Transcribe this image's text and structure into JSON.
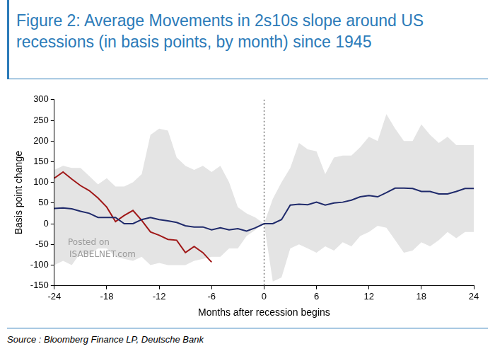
{
  "chart_data": {
    "type": "line",
    "title": [
      "Figure 2: Average Movements in 2s10s slope around US",
      "recessions (in basis points, by month) since 1945"
    ],
    "x_label": "Months after recession begins",
    "y_label": "Basis point change",
    "source": "Source : Bloomberg Finance LP, Deutsche Bank",
    "x": [
      -24,
      -23,
      -22,
      -21,
      -20,
      -19,
      -18,
      -17,
      -16,
      -15,
      -14,
      -13,
      -12,
      -11,
      -10,
      -9,
      -8,
      -7,
      -6,
      -5,
      -4,
      -3,
      -2,
      -1,
      0,
      1,
      2,
      3,
      4,
      5,
      6,
      7,
      8,
      9,
      10,
      11,
      12,
      13,
      14,
      15,
      16,
      17,
      18,
      19,
      20,
      21,
      22,
      23,
      24
    ],
    "series": [
      {
        "color": "#1f2a6b",
        "line_style": "solid",
        "values": [
          37,
          38,
          36,
          30,
          25,
          15,
          15,
          15,
          0,
          0,
          10,
          15,
          10,
          7,
          3,
          -5,
          -8,
          -8,
          -15,
          -10,
          -15,
          -12,
          -18,
          -10,
          0,
          0,
          10,
          45,
          47,
          46,
          52,
          45,
          50,
          52,
          57,
          65,
          68,
          65,
          75,
          86,
          86,
          85,
          78,
          78,
          72,
          72,
          78,
          85,
          85
        ],
        "upper": [
          130,
          140,
          135,
          135,
          115,
          95,
          110,
          90,
          90,
          100,
          120,
          215,
          230,
          225,
          160,
          140,
          130,
          140,
          125,
          140,
          100,
          40,
          25,
          15,
          0,
          60,
          100,
          135,
          195,
          180,
          175,
          120,
          160,
          165,
          165,
          185,
          210,
          200,
          265,
          230,
          200,
          200,
          240,
          215,
          195,
          210,
          190,
          190,
          190
        ],
        "lower": [
          -100,
          -90,
          -100,
          -70,
          -75,
          -60,
          -60,
          -80,
          -85,
          -90,
          -80,
          -100,
          -95,
          -100,
          -100,
          -100,
          -90,
          -85,
          -80,
          -80,
          -60,
          -60,
          -30,
          -15,
          0,
          -140,
          -130,
          -60,
          -50,
          -60,
          -70,
          -55,
          -65,
          -45,
          -55,
          -30,
          -20,
          -5,
          -10,
          -40,
          -70,
          -65,
          -45,
          -55,
          -40,
          -20,
          -35,
          -20,
          -20
        ],
        "band_color": "#e4e4e4"
      },
      {
        "color": "#a01818",
        "line_style": "solid",
        "values": [
          110,
          125,
          108,
          92,
          80,
          62,
          40,
          5,
          20,
          32,
          8,
          -20,
          -28,
          -38,
          -40,
          -70,
          -55,
          -70,
          -93,
          null,
          null,
          null,
          null,
          null,
          null,
          null,
          null,
          null,
          null,
          null,
          null,
          null,
          null,
          null,
          null,
          null,
          null,
          null,
          null,
          null,
          null,
          null,
          null,
          null,
          null,
          null,
          null,
          null,
          null
        ]
      }
    ],
    "xlim": [
      -24,
      24
    ],
    "xticks": [
      -24,
      -18,
      -12,
      -6,
      0,
      6,
      12,
      18,
      24
    ],
    "ylim": [
      -150,
      300
    ],
    "yticks": [
      -150,
      -100,
      -50,
      0,
      50,
      100,
      150,
      200,
      250,
      300
    ],
    "grid": false,
    "annotations": [
      {
        "x": 0,
        "line_style": "dotted"
      },
      {
        "text": "Posted on"
      },
      {
        "text": "ISABELNET.com"
      }
    ]
  }
}
